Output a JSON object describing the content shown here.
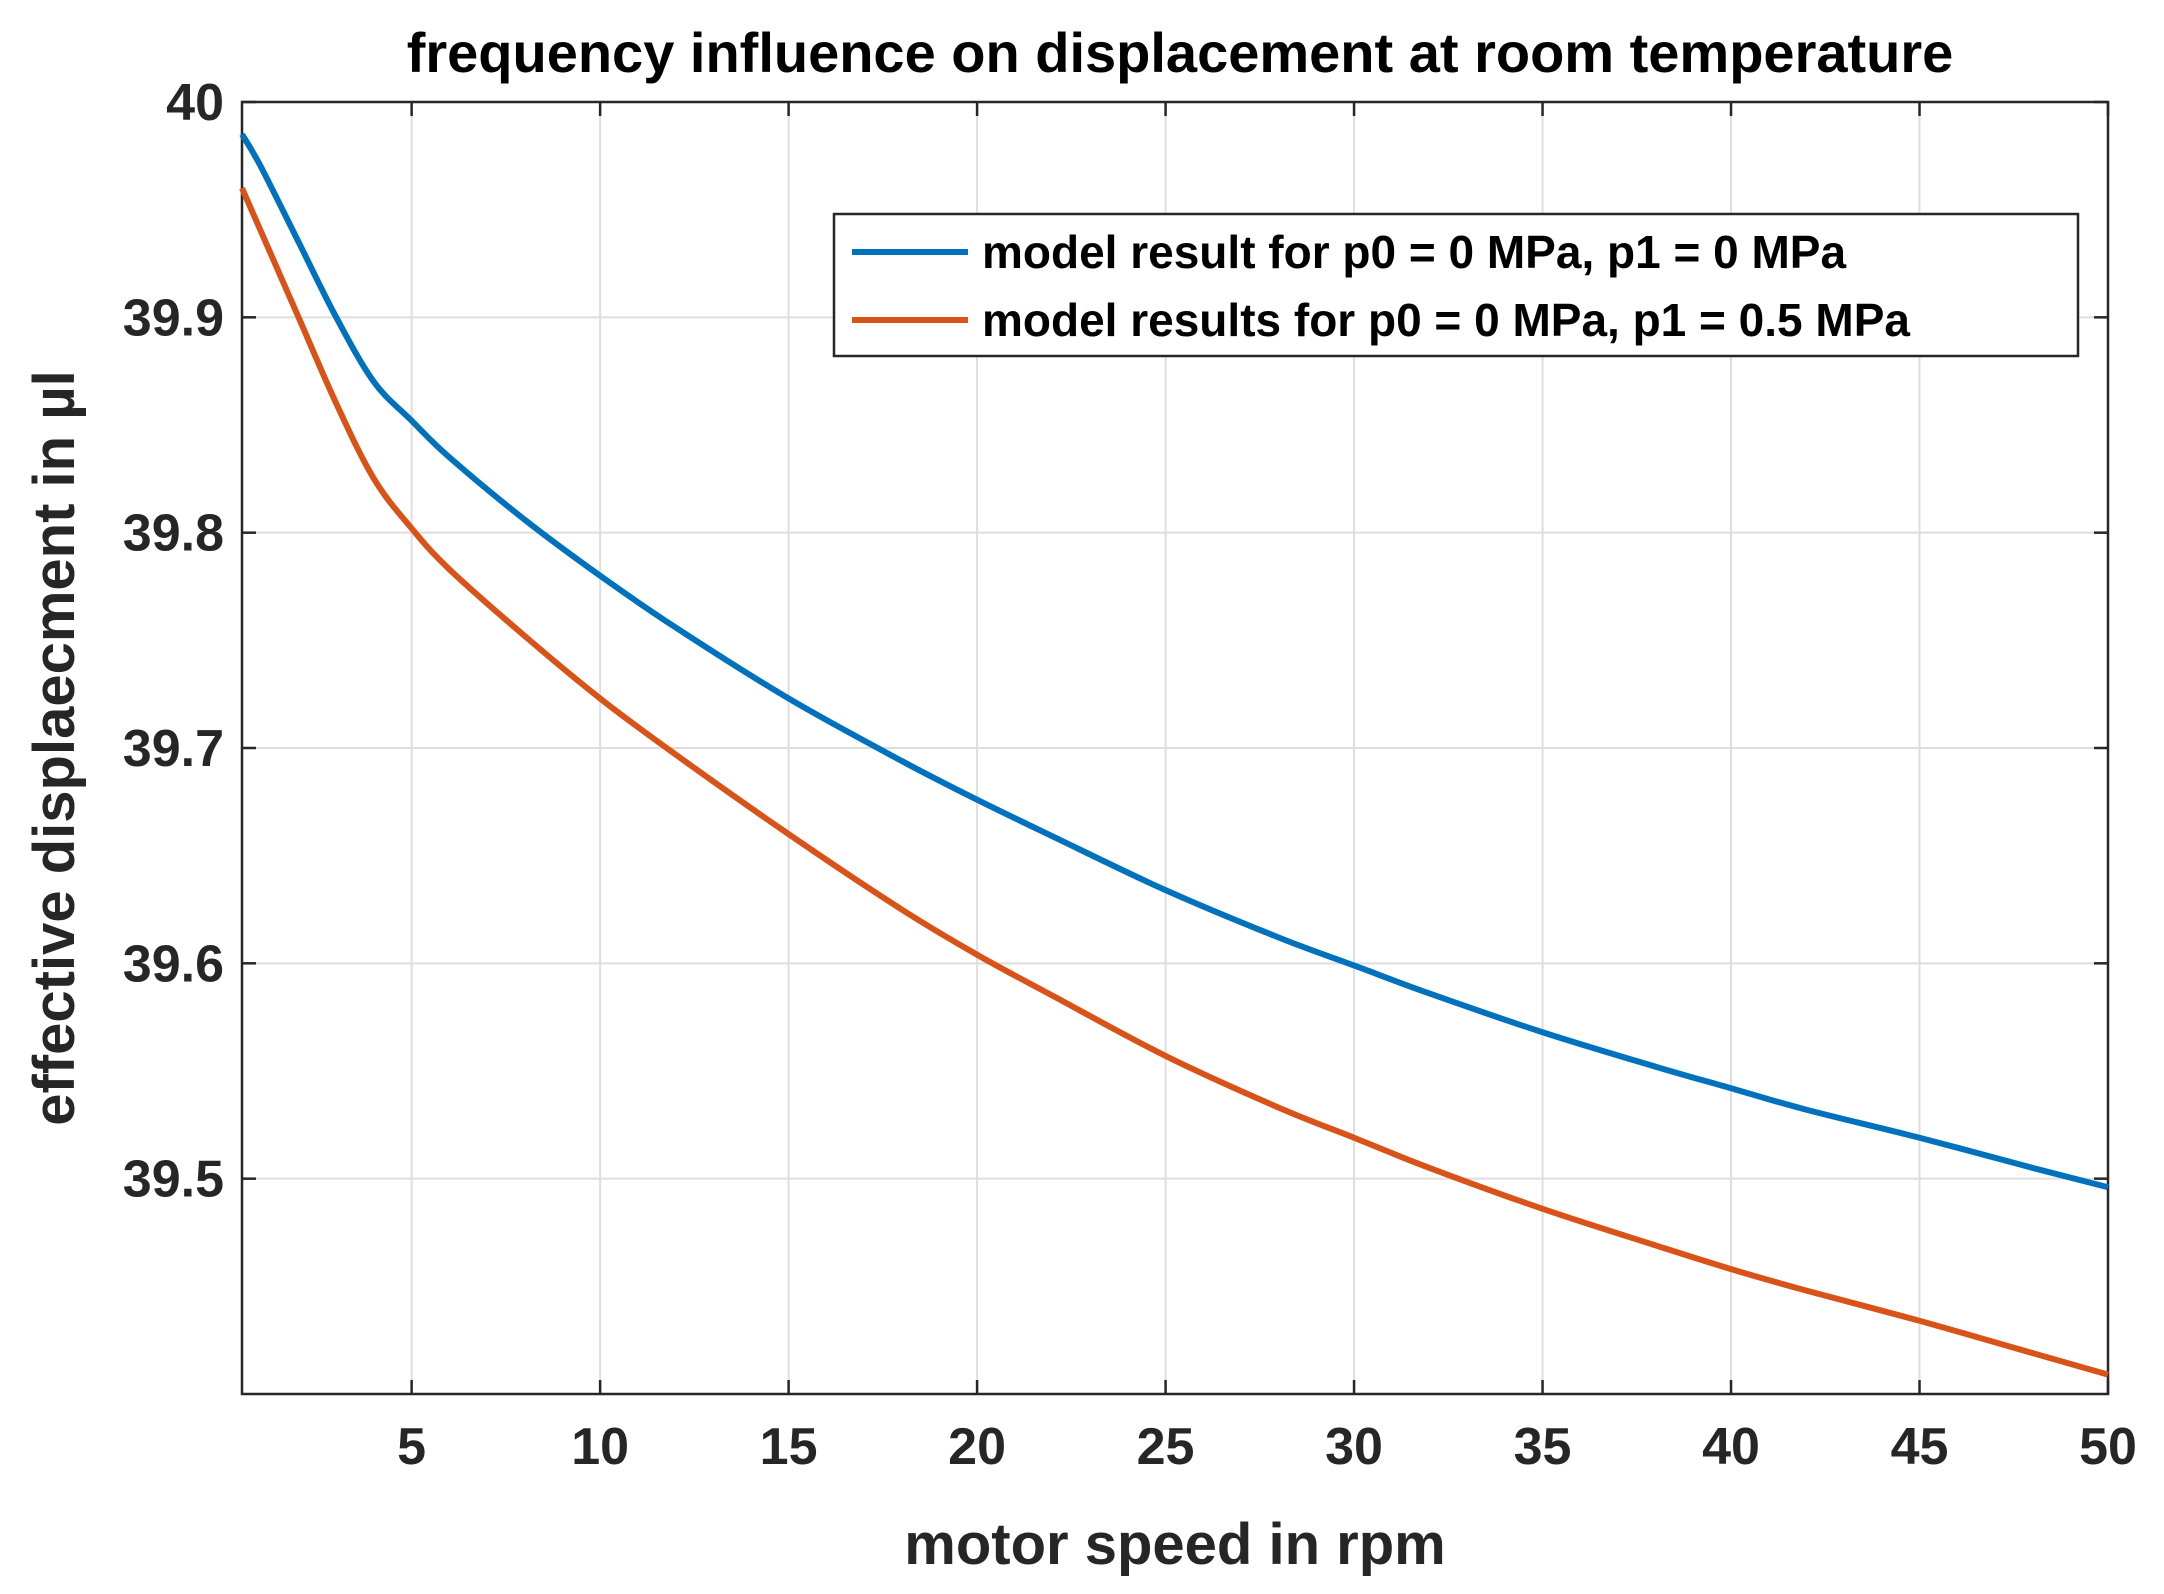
{
  "chart_data": {
    "type": "line",
    "title": "frequency influence on displacement at room temperature",
    "xlabel": "motor speed in rpm",
    "ylabel": "effective displaecment in µl",
    "xlim": [
      0.5,
      50
    ],
    "ylim": [
      39.4,
      40
    ],
    "xticks": [
      5,
      10,
      15,
      20,
      25,
      30,
      35,
      40,
      45,
      50
    ],
    "yticks": [
      39.5,
      39.6,
      39.7,
      39.8,
      39.9,
      40
    ],
    "xtick_labels": [
      "5",
      "10",
      "15",
      "20",
      "25",
      "30",
      "35",
      "40",
      "45",
      "50"
    ],
    "ytick_labels": [
      "39.5",
      "39.6",
      "39.7",
      "39.8",
      "39.9",
      "40"
    ],
    "grid": true,
    "legend_position": "top-right",
    "series": [
      {
        "name": "model result for p0 = 0 MPa, p1 = 0 MPa",
        "color": "#0072BD",
        "x": [
          0.5,
          1,
          2,
          3,
          4,
          5,
          6,
          8,
          10,
          12,
          15,
          18,
          20,
          22,
          25,
          28,
          30,
          32,
          35,
          38,
          40,
          42,
          45,
          48,
          50
        ],
        "y": [
          39.985,
          39.97,
          39.935,
          39.9,
          39.87,
          39.852,
          39.835,
          39.806,
          39.78,
          39.756,
          39.723,
          39.694,
          39.676,
          39.659,
          39.634,
          39.612,
          39.599,
          39.586,
          39.568,
          39.552,
          39.542,
          39.532,
          39.519,
          39.505,
          39.496
        ]
      },
      {
        "name": "model results for p0 = 0 MPa, p1 = 0.5 MPa",
        "color": "#D95319",
        "x": [
          0.5,
          1,
          2,
          3,
          4,
          5,
          6,
          8,
          10,
          12,
          15,
          18,
          20,
          22,
          25,
          28,
          30,
          32,
          35,
          38,
          40,
          42,
          45,
          48,
          50
        ],
        "y": [
          39.96,
          39.94,
          39.9,
          39.86,
          39.825,
          39.802,
          39.783,
          39.752,
          39.723,
          39.697,
          39.66,
          39.625,
          39.604,
          39.585,
          39.557,
          39.533,
          39.519,
          39.505,
          39.486,
          39.469,
          39.458,
          39.448,
          39.434,
          39.419,
          39.409
        ]
      }
    ]
  }
}
